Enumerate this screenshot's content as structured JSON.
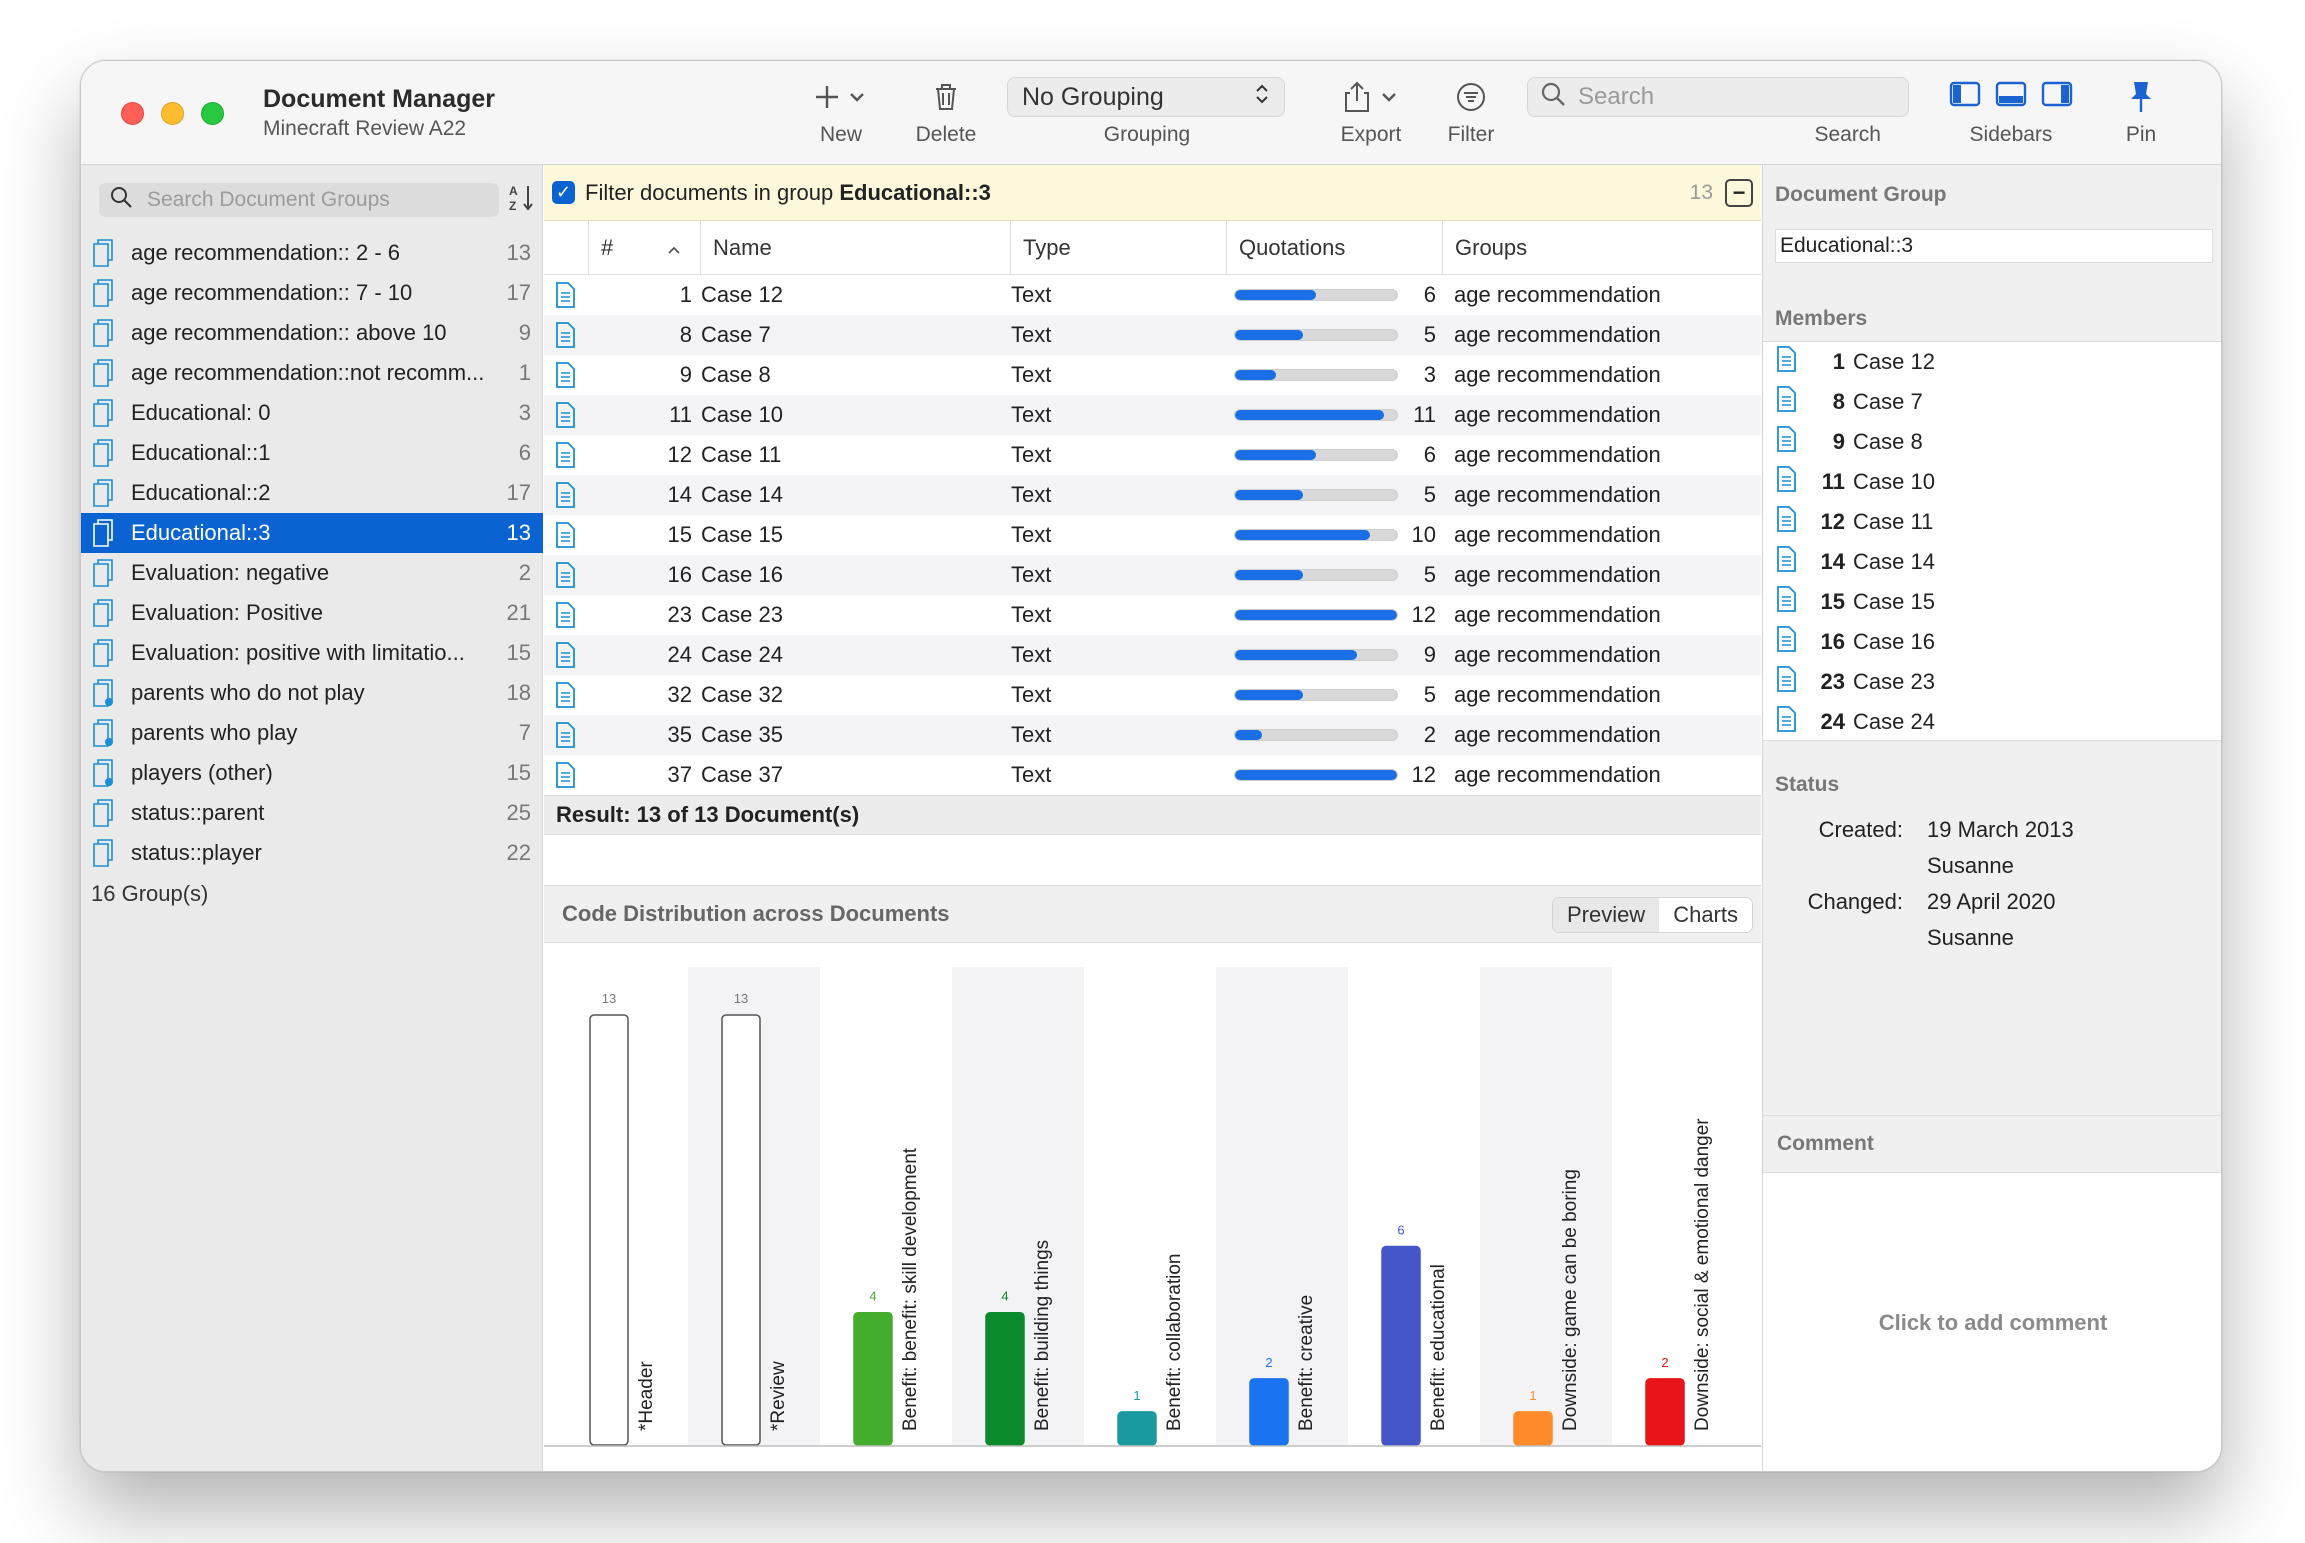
{
  "window": {
    "title": "Document Manager",
    "subtitle": "Minecraft Review A22"
  },
  "toolbar": {
    "new_label": "New",
    "delete_label": "Delete",
    "grouping_value": "No Grouping",
    "grouping_label": "Grouping",
    "export_label": "Export",
    "filter_label": "Filter",
    "search_placeholder": "Search",
    "search_label": "Search",
    "sidebars_label": "Sidebars",
    "pin_label": "Pin"
  },
  "sidebar": {
    "search_placeholder": "Search Document Groups",
    "groups": [
      {
        "name": "age recommendation:: 2 - 6",
        "count": "13",
        "type": "doc"
      },
      {
        "name": "age recommendation:: 7 - 10",
        "count": "17",
        "type": "doc"
      },
      {
        "name": "age recommendation:: above 10",
        "count": "9",
        "type": "doc"
      },
      {
        "name": "age recommendation::not recomm...",
        "count": "1",
        "type": "doc"
      },
      {
        "name": "Educational: 0",
        "count": "3",
        "type": "doc"
      },
      {
        "name": "Educational::1",
        "count": "6",
        "type": "doc"
      },
      {
        "name": "Educational::2",
        "count": "17",
        "type": "doc"
      },
      {
        "name": "Educational::3",
        "count": "13",
        "type": "doc",
        "selected": true
      },
      {
        "name": "Evaluation: negative",
        "count": "2",
        "type": "doc"
      },
      {
        "name": "Evaluation: Positive",
        "count": "21",
        "type": "doc"
      },
      {
        "name": "Evaluation: positive with limitatio...",
        "count": "15",
        "type": "doc"
      },
      {
        "name": "parents who do not play",
        "count": "18",
        "type": "smart"
      },
      {
        "name": "parents who play",
        "count": "7",
        "type": "smart"
      },
      {
        "name": "players (other)",
        "count": "15",
        "type": "smart"
      },
      {
        "name": "status::parent",
        "count": "25",
        "type": "doc"
      },
      {
        "name": "status::player",
        "count": "22",
        "type": "doc"
      }
    ],
    "total_label": "16 Group(s)"
  },
  "filter": {
    "prefix": "Filter documents in group ",
    "group": "Educational::3",
    "count": "13"
  },
  "table": {
    "headers": {
      "num": "#",
      "name": "Name",
      "type": "Type",
      "quotations": "Quotations",
      "groups": "Groups"
    },
    "max_quotations": 12,
    "rows": [
      {
        "num": "1",
        "name": "Case 12",
        "type": "Text",
        "quotations": 6,
        "groups": "age recommendation"
      },
      {
        "num": "8",
        "name": "Case 7",
        "type": "Text",
        "quotations": 5,
        "groups": "age recommendation"
      },
      {
        "num": "9",
        "name": "Case 8",
        "type": "Text",
        "quotations": 3,
        "groups": "age recommendation"
      },
      {
        "num": "11",
        "name": "Case 10",
        "type": "Text",
        "quotations": 11,
        "groups": "age recommendation"
      },
      {
        "num": "12",
        "name": "Case 11",
        "type": "Text",
        "quotations": 6,
        "groups": "age recommendation"
      },
      {
        "num": "14",
        "name": "Case 14",
        "type": "Text",
        "quotations": 5,
        "groups": "age recommendation"
      },
      {
        "num": "15",
        "name": "Case 15",
        "type": "Text",
        "quotations": 10,
        "groups": "age recommendation"
      },
      {
        "num": "16",
        "name": "Case 16",
        "type": "Text",
        "quotations": 5,
        "groups": "age recommendation"
      },
      {
        "num": "23",
        "name": "Case 23",
        "type": "Text",
        "quotations": 12,
        "groups": "age recommendation"
      },
      {
        "num": "24",
        "name": "Case 24",
        "type": "Text",
        "quotations": 9,
        "groups": "age recommendation"
      },
      {
        "num": "32",
        "name": "Case 32",
        "type": "Text",
        "quotations": 5,
        "groups": "age recommendation"
      },
      {
        "num": "35",
        "name": "Case 35",
        "type": "Text",
        "quotations": 2,
        "groups": "age recommendation"
      },
      {
        "num": "37",
        "name": "Case 37",
        "type": "Text",
        "quotations": 12,
        "groups": "age recommendation"
      }
    ],
    "result_label": "Result: 13 of 13 Document(s)"
  },
  "code_distribution": {
    "title": "Code Distribution across Documents",
    "tabs": [
      {
        "label": "Preview",
        "active": false
      },
      {
        "label": "Charts",
        "active": true
      }
    ]
  },
  "chart_data": {
    "type": "bar",
    "categories": [
      "*Header",
      "*Review",
      "Benefit: benefit: skill development",
      "Benefit: building things",
      "Benefit: collaboration",
      "Benefit: creative",
      "Benefit: educational",
      "Downside: game can be boring",
      "Downside: social & emotional danger"
    ],
    "values": [
      13,
      13,
      4,
      4,
      1,
      2,
      6,
      1,
      2
    ],
    "colors": [
      "#ffffff",
      "#ffffff",
      "#44ad2e",
      "#0a8a2a",
      "#1a9aa0",
      "#1a73f0",
      "#4556c8",
      "#ff8a2a",
      "#e8141a"
    ],
    "ylim": [
      0,
      13
    ]
  },
  "right_sidebar": {
    "doc_group_title": "Document Group",
    "doc_group_value": "Educational::3",
    "members_title": "Members",
    "members": [
      {
        "num": "1",
        "name": "Case 12"
      },
      {
        "num": "8",
        "name": "Case 7"
      },
      {
        "num": "9",
        "name": "Case 8"
      },
      {
        "num": "11",
        "name": "Case 10"
      },
      {
        "num": "12",
        "name": "Case 11"
      },
      {
        "num": "14",
        "name": "Case 14"
      },
      {
        "num": "15",
        "name": "Case 15"
      },
      {
        "num": "16",
        "name": "Case 16"
      },
      {
        "num": "23",
        "name": "Case 23"
      },
      {
        "num": "24",
        "name": "Case 24"
      }
    ],
    "status_title": "Status",
    "created_label": "Created:",
    "created_date": "19 March 2013",
    "created_by": "Susanne",
    "changed_label": "Changed:",
    "changed_date": "29 April 2020",
    "changed_by": "Susanne",
    "comment_title": "Comment",
    "comment_placeholder": "Click to add comment"
  }
}
